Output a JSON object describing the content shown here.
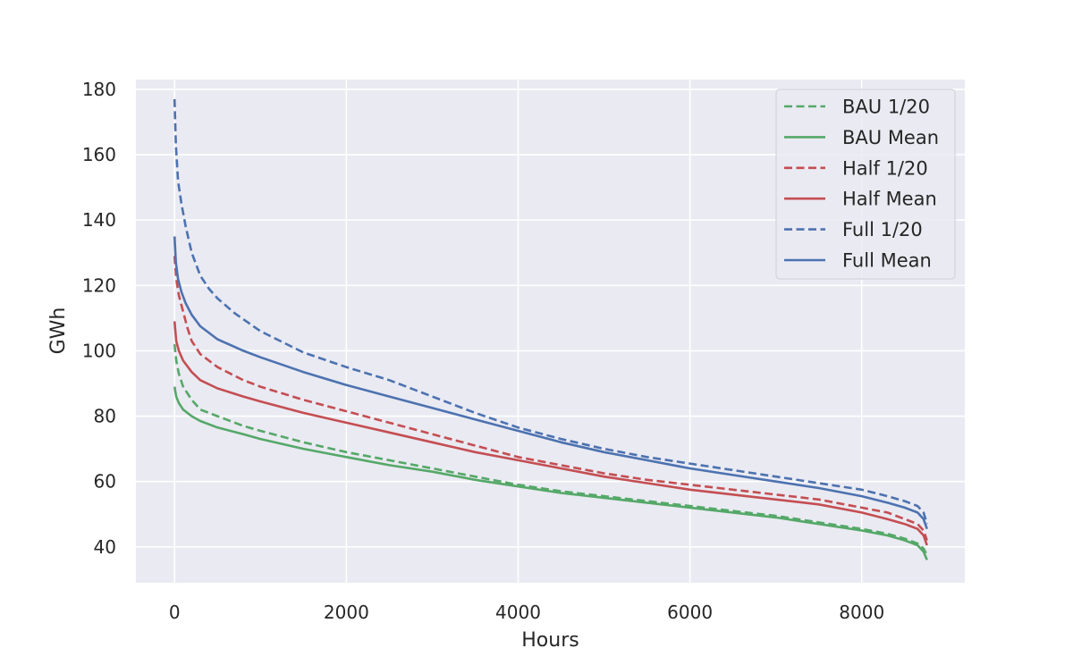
{
  "chart_data": {
    "type": "line",
    "title": "",
    "xlabel": "Hours",
    "ylabel": "GWh",
    "xlim": [
      -450,
      9200
    ],
    "ylim": [
      29,
      183
    ],
    "xticks": [
      0,
      2000,
      4000,
      6000,
      8000
    ],
    "yticks": [
      40,
      60,
      80,
      100,
      120,
      140,
      160,
      180
    ],
    "xtick_labels": [
      "0",
      "2000",
      "4000",
      "6000",
      "8000"
    ],
    "ytick_labels": [
      "40",
      "60",
      "80",
      "100",
      "120",
      "140",
      "160",
      "180"
    ],
    "grid": true,
    "legend_position": "top-right",
    "series": [
      {
        "name": "BAU 1/20",
        "color": "#55a868",
        "style": "dashed",
        "x": [
          0,
          20,
          50,
          100,
          200,
          300,
          500,
          800,
          1000,
          1500,
          2000,
          2500,
          3000,
          3500,
          4000,
          4500,
          5000,
          5500,
          6000,
          6500,
          7000,
          7500,
          8000,
          8300,
          8500,
          8650,
          8720,
          8760
        ],
        "y": [
          102,
          97,
          93,
          89,
          85,
          82,
          80,
          77,
          75.5,
          72,
          69,
          66.5,
          64,
          61.5,
          59,
          57,
          55.5,
          54,
          52.5,
          51,
          49.5,
          47.5,
          45.5,
          44,
          42.5,
          41,
          39.5,
          37.5
        ]
      },
      {
        "name": "BAU Mean",
        "color": "#55a868",
        "style": "solid",
        "x": [
          0,
          20,
          50,
          100,
          200,
          300,
          500,
          800,
          1000,
          1500,
          2000,
          2500,
          3000,
          3500,
          4000,
          4500,
          5000,
          5500,
          6000,
          6500,
          7000,
          7500,
          8000,
          8300,
          8500,
          8650,
          8720,
          8760
        ],
        "y": [
          89,
          86,
          84,
          82,
          80,
          78.5,
          76.5,
          74.5,
          73,
          70,
          67.5,
          65,
          63,
          60.5,
          58.5,
          56.5,
          55,
          53.5,
          52,
          50.5,
          49,
          47,
          45,
          43.5,
          42,
          40.5,
          38.5,
          36
        ]
      },
      {
        "name": "Half 1/20",
        "color": "#c44e52",
        "style": "dashed",
        "x": [
          0,
          20,
          50,
          100,
          150,
          200,
          300,
          500,
          800,
          1000,
          1500,
          2000,
          2500,
          3000,
          3500,
          4000,
          4500,
          5000,
          5500,
          6000,
          6500,
          7000,
          7500,
          8000,
          8300,
          8500,
          8650,
          8720,
          8760
        ],
        "y": [
          129,
          122,
          117,
          112,
          107,
          103,
          99,
          95,
          91,
          89,
          85,
          81.5,
          78,
          74.5,
          71,
          67.5,
          65,
          62.5,
          60.5,
          59,
          57.5,
          56,
          54.5,
          52,
          50.5,
          48.5,
          47,
          45,
          42
        ]
      },
      {
        "name": "Half Mean",
        "color": "#c44e52",
        "style": "solid",
        "x": [
          0,
          20,
          50,
          100,
          200,
          300,
          500,
          800,
          1000,
          1500,
          2000,
          2500,
          3000,
          3500,
          4000,
          4500,
          5000,
          5500,
          6000,
          6500,
          7000,
          7500,
          8000,
          8300,
          8500,
          8650,
          8720,
          8760
        ],
        "y": [
          109,
          103,
          100,
          97,
          93.5,
          91,
          88.5,
          86,
          84.5,
          81,
          78,
          75,
          72,
          69,
          66.5,
          64,
          61.5,
          59.5,
          57.5,
          56,
          54.5,
          53,
          50.5,
          48.5,
          47,
          45.5,
          43.5,
          40.5
        ]
      },
      {
        "name": "Full 1/20",
        "color": "#4c72b0",
        "style": "dashed",
        "x": [
          0,
          15,
          40,
          80,
          130,
          200,
          300,
          400,
          500,
          700,
          1000,
          1500,
          2000,
          2500,
          3000,
          3500,
          4000,
          4500,
          5000,
          5500,
          6000,
          6500,
          7000,
          7500,
          8000,
          8300,
          8500,
          8650,
          8720,
          8760
        ],
        "y": [
          177,
          163,
          152,
          145,
          138,
          130,
          123,
          119,
          116,
          111.5,
          106,
          99.5,
          95,
          91,
          86,
          81,
          76.5,
          73,
          70,
          67.5,
          65.5,
          63.5,
          61.5,
          59.5,
          57.5,
          55.5,
          54,
          52.5,
          50.5,
          47
        ]
      },
      {
        "name": "Full Mean",
        "color": "#4c72b0",
        "style": "solid",
        "x": [
          0,
          15,
          40,
          80,
          130,
          200,
          300,
          500,
          800,
          1000,
          1500,
          2000,
          2500,
          3000,
          3500,
          4000,
          4500,
          5000,
          5500,
          6000,
          6500,
          7000,
          7500,
          8000,
          8300,
          8500,
          8650,
          8720,
          8760
        ],
        "y": [
          135,
          127,
          122,
          118,
          114.5,
          111,
          107.5,
          103.5,
          100,
          98,
          93.5,
          89.5,
          86,
          82.5,
          79,
          75.5,
          72,
          69,
          66.5,
          64,
          62,
          60,
          58,
          55.5,
          53.5,
          52,
          50.5,
          48.5,
          45.5
        ]
      }
    ]
  }
}
